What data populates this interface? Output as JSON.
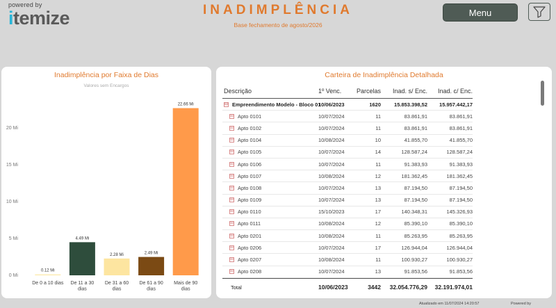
{
  "header": {
    "powered_by": "powered by",
    "brand_i": "i",
    "brand_rest": "temize",
    "title": "INADIMPLÊNCIA",
    "subtitle": "Base fechamento de agosto/2026",
    "menu_label": "Menu",
    "filter_icon": "filter-funnel-icon"
  },
  "left_panel": {
    "title": "Inadimplência por Faixa de Dias",
    "subtitle": "Valores sem Encargos"
  },
  "chart_data": {
    "type": "bar",
    "title": "Inadimplência por Faixa de Dias",
    "subtitle": "Valores sem Encargos",
    "categories": [
      "De 0 a 10 dias",
      "De 11 a 30 dias",
      "De 31 a 60 dias",
      "De 61 a 90 dias",
      "Mais de 90 dias"
    ],
    "category_lines": [
      [
        "De 0 a 10 dias"
      ],
      [
        "De 11 a 30",
        "dias"
      ],
      [
        "De 31 a 60",
        "dias"
      ],
      [
        "De 61 a 90",
        "dias"
      ],
      [
        "Mais de 90",
        "dias"
      ]
    ],
    "values": [
      0.12,
      4.49,
      2.28,
      2.49,
      22.66
    ],
    "data_labels": [
      "0.12 Mi",
      "4.49 Mi",
      "2.28 Mi",
      "2.49 Mi",
      "22.66 Mi"
    ],
    "colors": [
      "#fde9a8",
      "#2e4d3c",
      "#fde5a0",
      "#7b4a14",
      "#ff9a4a"
    ],
    "yticks": [
      0,
      5,
      10,
      15,
      20
    ],
    "ytick_labels": [
      "0 Mi",
      "5 Mi",
      "10 Mi",
      "15 Mi",
      "20 Mi"
    ],
    "ylim": [
      0,
      24.5
    ],
    "grid": false,
    "xlabel": "",
    "ylabel": ""
  },
  "right_panel": {
    "title": "Carteira de Inadimplência Detalhada",
    "columns": [
      "Descrição",
      "1º Venc.",
      "Parcelas",
      "Inad. s/ Enc.",
      "Inad. c/ Enc."
    ],
    "group_row": {
      "toggle": "⊟",
      "desc": "Empreendimento Modelo - Bloco 01",
      "venc": "10/06/2023",
      "parcelas": "1620",
      "sem_enc": "15.853.398,52",
      "com_enc": "15.957.442,17"
    },
    "rows": [
      {
        "toggle": "⊞",
        "desc": "Apto 0101",
        "venc": "10/07/2024",
        "parcelas": "11",
        "sem_enc": "83.861,91",
        "com_enc": "83.861,91"
      },
      {
        "toggle": "⊞",
        "desc": "Apto 0102",
        "venc": "10/07/2024",
        "parcelas": "11",
        "sem_enc": "83.861,91",
        "com_enc": "83.861,91"
      },
      {
        "toggle": "⊞",
        "desc": "Apto 0104",
        "venc": "10/08/2024",
        "parcelas": "10",
        "sem_enc": "41.855,70",
        "com_enc": "41.855,70"
      },
      {
        "toggle": "⊞",
        "desc": "Apto 0105",
        "venc": "10/07/2024",
        "parcelas": "14",
        "sem_enc": "128.587,24",
        "com_enc": "128.587,24"
      },
      {
        "toggle": "⊞",
        "desc": "Apto 0106",
        "venc": "10/07/2024",
        "parcelas": "11",
        "sem_enc": "91.383,93",
        "com_enc": "91.383,93"
      },
      {
        "toggle": "⊞",
        "desc": "Apto 0107",
        "venc": "10/08/2024",
        "parcelas": "12",
        "sem_enc": "181.362,45",
        "com_enc": "181.362,45"
      },
      {
        "toggle": "⊞",
        "desc": "Apto 0108",
        "venc": "10/07/2024",
        "parcelas": "13",
        "sem_enc": "87.194,50",
        "com_enc": "87.194,50"
      },
      {
        "toggle": "⊞",
        "desc": "Apto 0109",
        "venc": "10/07/2024",
        "parcelas": "13",
        "sem_enc": "87.194,50",
        "com_enc": "87.194,50"
      },
      {
        "toggle": "⊞",
        "desc": "Apto 0110",
        "venc": "15/10/2023",
        "parcelas": "17",
        "sem_enc": "140.348,31",
        "com_enc": "145.326,93"
      },
      {
        "toggle": "⊞",
        "desc": "Apto 0111",
        "venc": "10/08/2024",
        "parcelas": "12",
        "sem_enc": "85.390,10",
        "com_enc": "85.390,10"
      },
      {
        "toggle": "⊞",
        "desc": "Apto 0201",
        "venc": "10/08/2024",
        "parcelas": "11",
        "sem_enc": "85.263,95",
        "com_enc": "85.263,95"
      },
      {
        "toggle": "⊞",
        "desc": "Apto 0206",
        "venc": "10/07/2024",
        "parcelas": "17",
        "sem_enc": "126.944,04",
        "com_enc": "126.944,04"
      },
      {
        "toggle": "⊞",
        "desc": "Apto 0207",
        "venc": "10/08/2024",
        "parcelas": "11",
        "sem_enc": "100.930,27",
        "com_enc": "100.930,27"
      },
      {
        "toggle": "⊞",
        "desc": "Apto 0208",
        "venc": "10/07/2024",
        "parcelas": "13",
        "sem_enc": "91.853,56",
        "com_enc": "91.853,56"
      }
    ],
    "total": {
      "label": "Total",
      "venc": "10/06/2023",
      "parcelas": "3442",
      "sem_enc": "32.054.776,29",
      "com_enc": "32.191.974,01"
    }
  },
  "footer": {
    "updated": "Atualizado em 11/07/2024 14:20:57",
    "powered": "Powered by"
  }
}
